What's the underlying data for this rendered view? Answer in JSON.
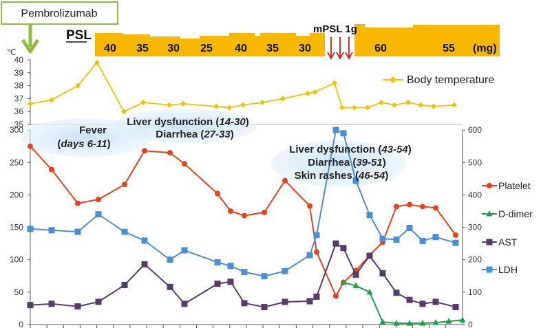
{
  "drug_box": {
    "label": "Pembrolizumab"
  },
  "psl": {
    "label": "PSL",
    "unit": "(mg)",
    "doses": [
      "40",
      "35",
      "30",
      "25",
      "40",
      "35",
      "30",
      "60",
      "55"
    ],
    "mpsl_label": "mPSL 1g",
    "color": "#f9b800"
  },
  "temperature_chart": {
    "unit": "℃",
    "y_ticks": [
      "40",
      "39",
      "38",
      "37",
      "36",
      "35"
    ],
    "legend": "Body temperature",
    "color": "#f2c200",
    "ylim": [
      35,
      40
    ]
  },
  "chart_data": {
    "type": "line",
    "temperature_values": [
      36.6,
      36.9,
      38.0,
      39.8,
      36.0,
      36.7,
      36.5,
      36.6,
      36.4,
      36.3,
      36.5,
      36.7,
      37.0,
      37.4,
      37.5,
      38.2,
      36.3,
      36.3,
      36.3,
      36.7,
      36.5,
      36.7,
      36.5,
      36.4,
      36.5
    ],
    "left_axis": {
      "ticks": [
        "0",
        "50",
        "100",
        "150",
        "200",
        "250",
        "300"
      ],
      "ylim": [
        0,
        300
      ]
    },
    "right_axis": {
      "ticks": [
        "0",
        "100",
        "200",
        "300",
        "400",
        "500",
        "600"
      ],
      "ylim": [
        0,
        600
      ]
    },
    "series": [
      {
        "name": "Platelet",
        "color": "#e8421a",
        "marker": "circle",
        "axis": "left",
        "values": [
          275,
          239,
          187,
          193,
          216,
          268,
          265,
          248,
          202,
          175,
          168,
          173,
          222,
          183,
          112,
          44,
          65,
          83,
          107,
          127,
          182,
          185,
          182,
          180,
          138
        ]
      },
      {
        "name": "D-dimer",
        "color": "#1f9e4a",
        "marker": "triangle",
        "axis": "left",
        "values": [
          65,
          60,
          50,
          4,
          2,
          2,
          2,
          3,
          5,
          7
        ]
      },
      {
        "name": "AST",
        "color": "#5a3a6e",
        "marker": "square",
        "axis": "left",
        "values": [
          30,
          32,
          28,
          35,
          61,
          93,
          58,
          32,
          63,
          66,
          33,
          27,
          35,
          36,
          43,
          125,
          118,
          77,
          106,
          79,
          49,
          38,
          32,
          35,
          27
        ]
      },
      {
        "name": "LDH",
        "color": "#4a8fd4",
        "marker": "square",
        "axis": "right",
        "values": [
          295,
          291,
          286,
          340,
          286,
          259,
          200,
          229,
          192,
          181,
          162,
          149,
          165,
          214,
          276,
          600,
          590,
          444,
          338,
          265,
          262,
          298,
          258,
          270,
          252
        ]
      }
    ]
  },
  "annotations": [
    {
      "line1": "Fever",
      "line2_pre": "(",
      "line2_em": "days 6-11",
      "line2_post": ")"
    },
    {
      "line1_pre": "Liver dysfunction (",
      "line1_em": "14-30",
      "line1_post": ")",
      "line2_pre": "Diarrhea (",
      "line2_em": "27-33",
      "line2_post": ")"
    },
    {
      "line1_pre": "Liver dysfunction  (",
      "line1_em": "43-54",
      "line1_post": ")",
      "line2_pre": "Diarrhea (",
      "line2_em": "39-51",
      "line2_post": ")",
      "line3_pre": "Skin rashes (",
      "line3_em": "46-54",
      "line3_post": ")"
    }
  ],
  "axis_color": "#555555",
  "grid_color": "#cccccc"
}
